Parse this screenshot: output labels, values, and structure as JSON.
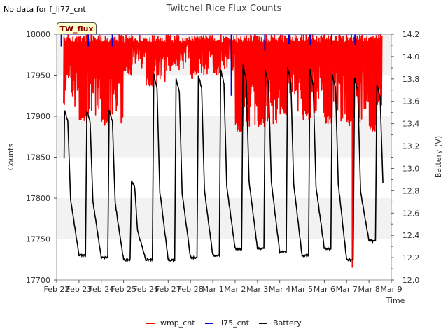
{
  "note": "No data for f_li77_cnt",
  "badge": "TW_flux",
  "colors": {
    "wmp_cnt": "#ff0000",
    "li75_cnt": "#0000cc",
    "battery": "#000000",
    "band": "#f2f2f2"
  },
  "chart_data": {
    "type": "line",
    "title": "Twitchel Rice Flux Counts",
    "xlabel": "Time",
    "ylabel": "Counts",
    "y2label": "Battery (V)",
    "ylim": [
      17700,
      18000
    ],
    "y2lim": [
      12.0,
      14.2
    ],
    "xlim": [
      "2022-02-22",
      "2022-03-09"
    ],
    "xticks": [
      "Feb 22",
      "Feb 23",
      "Feb 24",
      "Feb 25",
      "Feb 26",
      "Feb 27",
      "Feb 28",
      "Mar 1",
      "Mar 2",
      "Mar 3",
      "Mar 4",
      "Mar 5",
      "Mar 6",
      "Mar 7",
      "Mar 8",
      "Mar 9"
    ],
    "yticks": [
      17700,
      17750,
      17800,
      17850,
      17900,
      17950,
      18000
    ],
    "y2ticks": [
      12.0,
      12.2,
      12.4,
      12.6,
      12.8,
      13.0,
      13.2,
      13.4,
      13.6,
      13.8,
      14.0,
      14.2
    ],
    "legend": [
      "wmp_cnt",
      "li75_cnt",
      "Battery"
    ],
    "legend_position": "bottom",
    "series": [
      {
        "name": "wmp_cnt",
        "axis": "left",
        "note": "oscillates rapidly between the daily minimum and 18000",
        "x": [
          "2022-02-22",
          "2022-02-23",
          "2022-02-24",
          "2022-02-25",
          "2022-02-26",
          "2022-02-27",
          "2022-02-28",
          "2022-03-01",
          "2022-03-02",
          "2022-03-03",
          "2022-03-04",
          "2022-03-05",
          "2022-03-06",
          "2022-03-07",
          "2022-03-08"
        ],
        "low": [
          17905,
          17890,
          17885,
          17950,
          17935,
          17955,
          17945,
          17950,
          17880,
          17885,
          17900,
          17895,
          17890,
          17888,
          17880
        ],
        "high": [
          18000,
          18000,
          18000,
          18000,
          18000,
          18000,
          18000,
          18000,
          18000,
          18000,
          18000,
          18000,
          18000,
          18000,
          18000
        ],
        "spike": {
          "x": "2022-03-07 06:00",
          "min": 17715
        }
      },
      {
        "name": "li75_cnt",
        "axis": "left",
        "note": "flat at 18000 with brief dips",
        "value": 18000,
        "dips": [
          {
            "x": "2022-02-22 05:00",
            "y": 17985
          },
          {
            "x": "2022-02-23 10:00",
            "y": 17985
          },
          {
            "x": "2022-02-24 12:00",
            "y": 17985
          },
          {
            "x": "2022-03-01 20:00",
            "y": 17925
          },
          {
            "x": "2022-03-03 08:00",
            "y": 17980
          },
          {
            "x": "2022-03-04 10:00",
            "y": 17988
          },
          {
            "x": "2022-03-05 09:00",
            "y": 17987
          },
          {
            "x": "2022-03-06 08:00",
            "y": 17987
          },
          {
            "x": "2022-03-07 09:00",
            "y": 17987
          }
        ]
      },
      {
        "name": "Battery",
        "axis": "right",
        "note": "daily charge cycle: peak mid-morning, slow decline to pre-dawn minimum",
        "x": [
          "2022-02-22",
          "2022-02-23",
          "2022-02-24",
          "2022-02-25",
          "2022-02-26",
          "2022-02-27",
          "2022-02-28",
          "2022-03-01",
          "2022-03-02",
          "2022-03-03",
          "2022-03-04",
          "2022-03-05",
          "2022-03-06",
          "2022-03-07",
          "2022-03-08"
        ],
        "min": [
          12.25,
          12.22,
          12.2,
          12.18,
          12.18,
          12.18,
          12.2,
          12.22,
          12.28,
          12.28,
          12.25,
          12.22,
          12.28,
          12.18,
          12.35
        ],
        "max": [
          13.52,
          13.52,
          13.52,
          12.89,
          13.84,
          13.81,
          13.84,
          13.89,
          13.92,
          13.88,
          13.9,
          13.88,
          13.84,
          13.82,
          13.75
        ]
      }
    ]
  }
}
